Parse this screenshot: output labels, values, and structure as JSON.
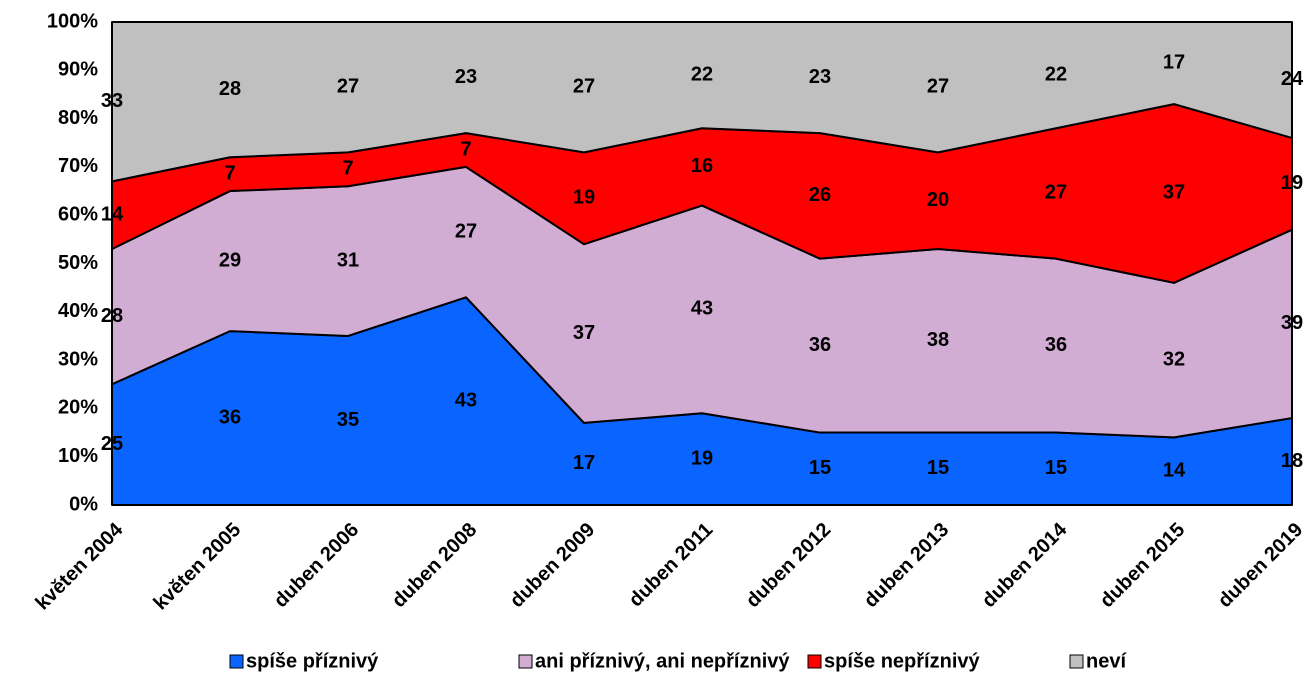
{
  "chart_data": {
    "type": "stacked_area",
    "categories": [
      "květen 2004",
      "květen 2005",
      "duben 2006",
      "duben 2008",
      "duben 2009",
      "duben 2011",
      "duben 2012",
      "duben 2013",
      "duben 2014",
      "duben 2015",
      "duben 2019"
    ],
    "series": [
      {
        "name": "spíše příznivý",
        "color": "#0a64ff",
        "values": [
          25,
          36,
          35,
          43,
          17,
          19,
          15,
          15,
          15,
          14,
          18
        ]
      },
      {
        "name": "ani příznivý, ani nepříznivý",
        "color": "#d1acd3",
        "values": [
          28,
          29,
          31,
          27,
          37,
          43,
          36,
          38,
          36,
          32,
          39
        ]
      },
      {
        "name": "spíše nepříznivý",
        "color": "#ff0000",
        "values": [
          14,
          7,
          7,
          7,
          19,
          16,
          26,
          20,
          27,
          37,
          19
        ]
      },
      {
        "name": "neví",
        "color": "#c0c0c0",
        "values": [
          33,
          28,
          27,
          23,
          27,
          22,
          23,
          27,
          22,
          17,
          24
        ]
      }
    ],
    "ylim": [
      0,
      100
    ],
    "yticks": [
      {
        "value": 0,
        "label": "0%"
      },
      {
        "value": 10,
        "label": "10%"
      },
      {
        "value": 20,
        "label": "20%"
      },
      {
        "value": 30,
        "label": "30%"
      },
      {
        "value": 40,
        "label": "40%"
      },
      {
        "value": 50,
        "label": "50%"
      },
      {
        "value": 60,
        "label": "60%"
      },
      {
        "value": 70,
        "label": "70%"
      },
      {
        "value": 80,
        "label": "80%"
      },
      {
        "value": 90,
        "label": "90%"
      },
      {
        "value": 100,
        "label": "100%"
      }
    ],
    "legend": "bottom"
  }
}
